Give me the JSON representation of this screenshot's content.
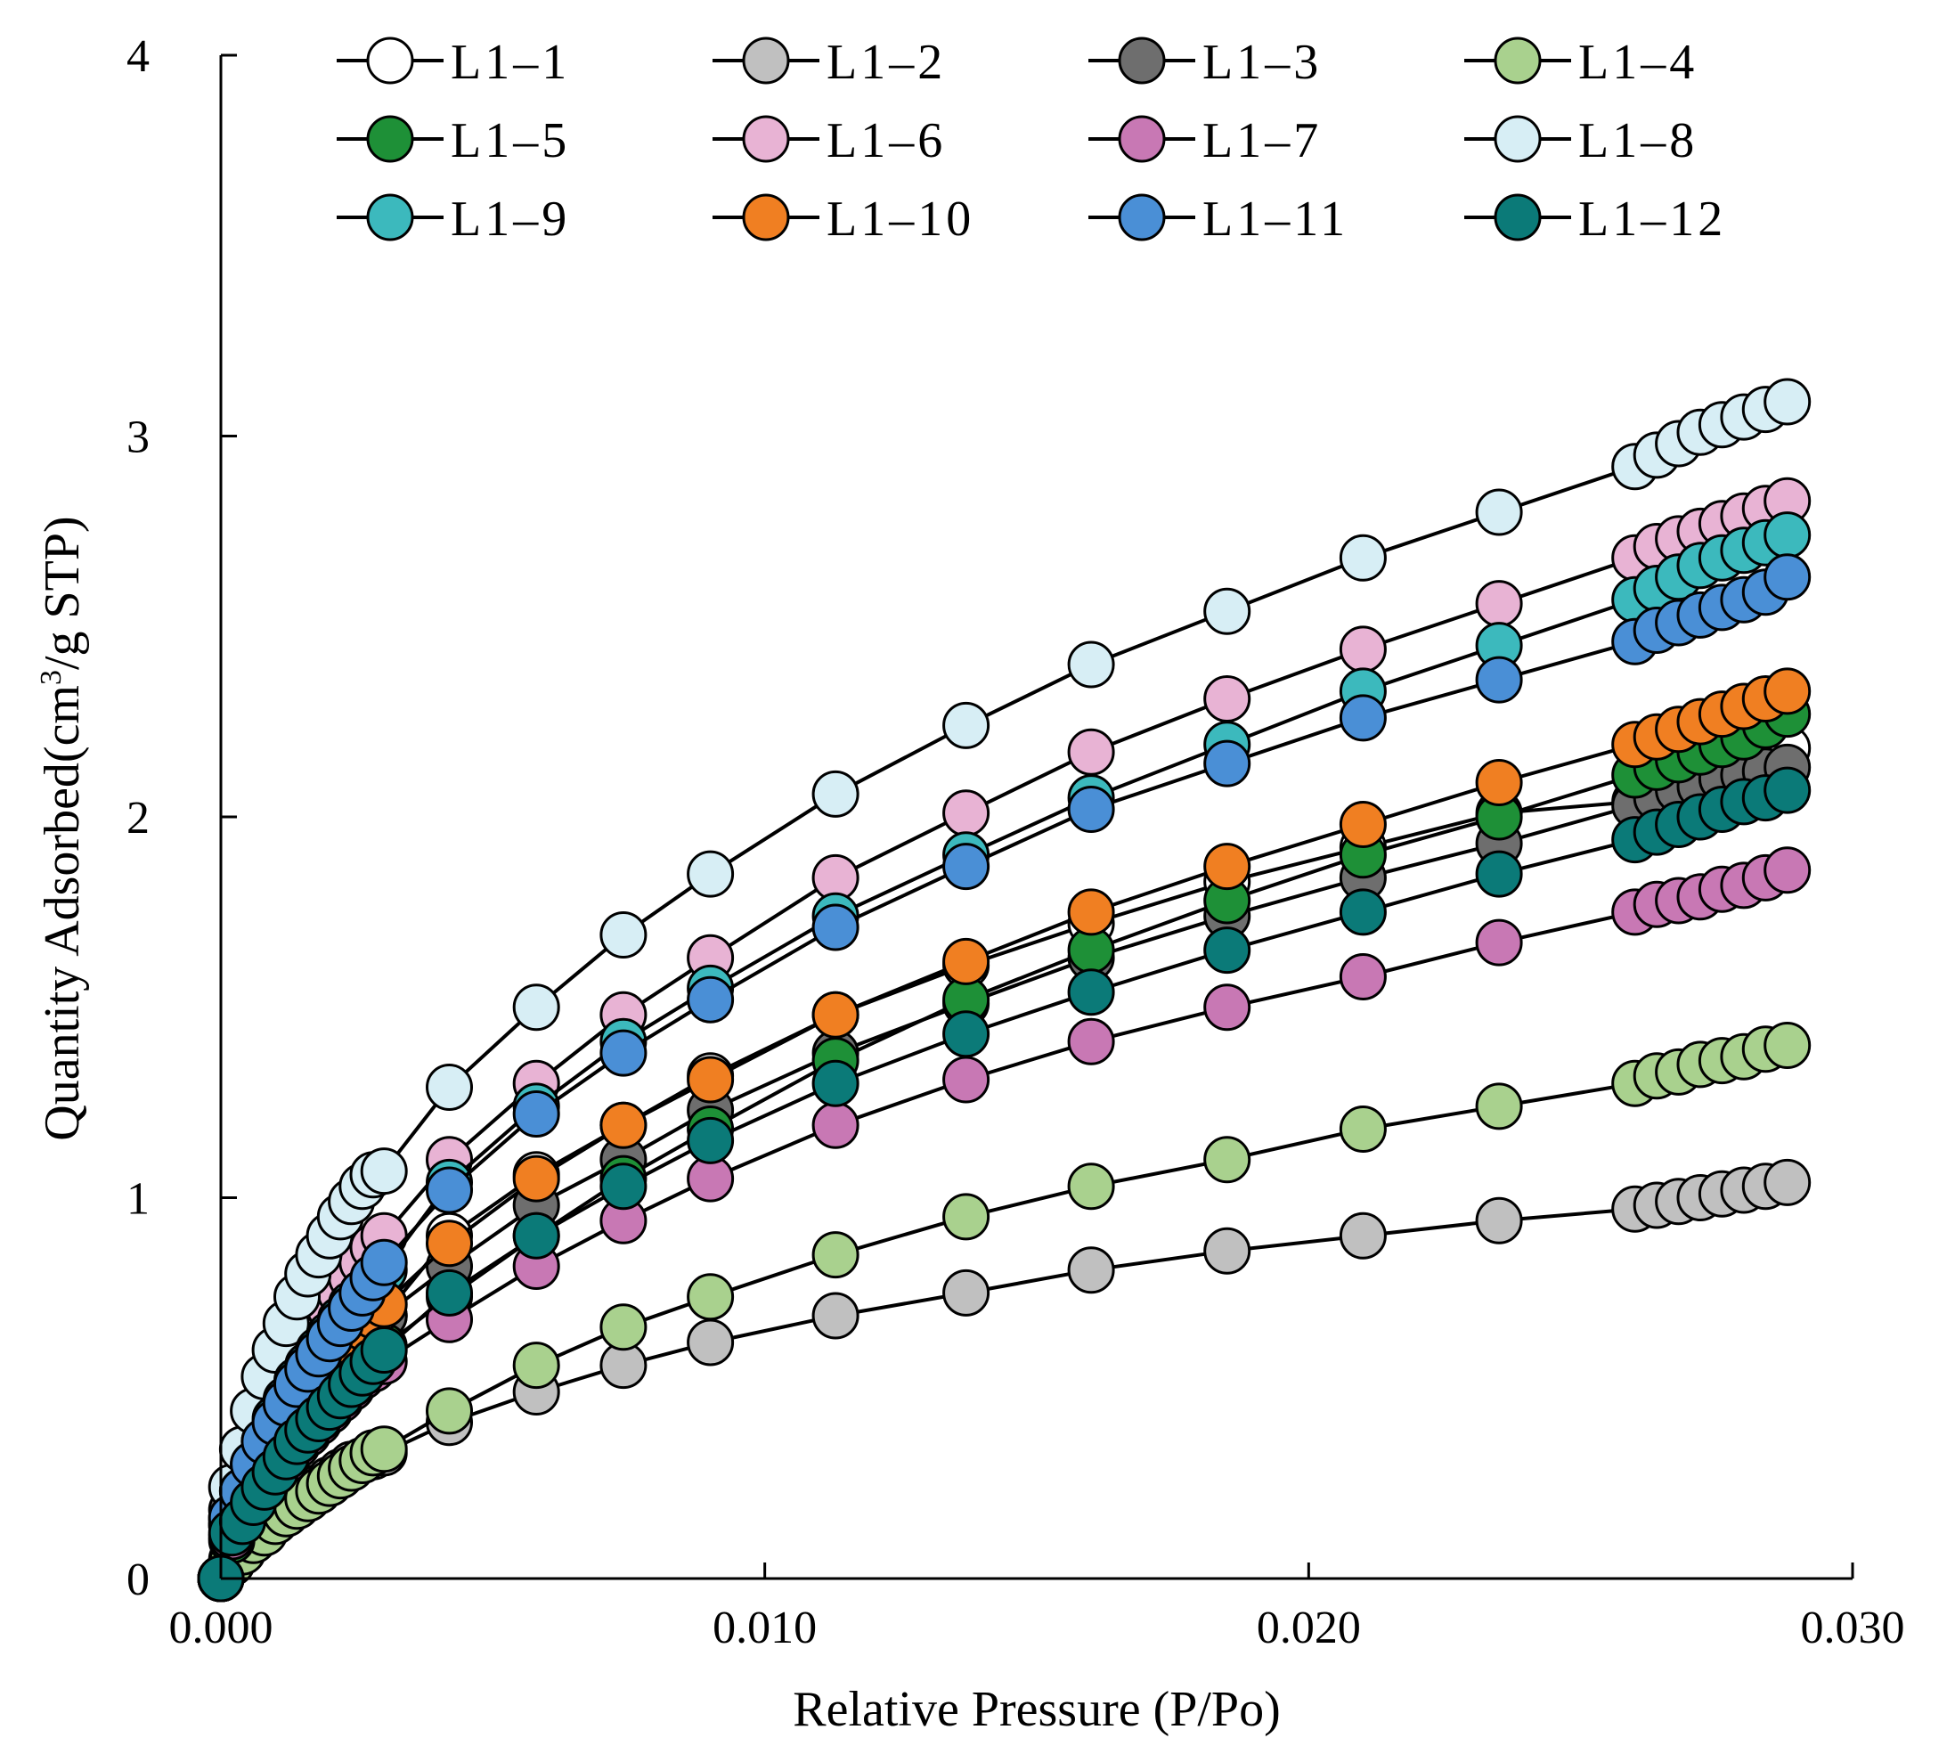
{
  "chart_data": {
    "type": "scatter",
    "title": "",
    "xlabel": "Relative Pressure (P/Po)",
    "ylabel": "Quantity Adsorbed(cm³/g STP)",
    "ylabel_parts": {
      "pre": "Quantity Adsorbed(cm",
      "sup": "3",
      "post": "/g STP)"
    },
    "xlim": [
      0,
      0.03
    ],
    "ylim": [
      0,
      4
    ],
    "x_ticks": [
      {
        "value": 0,
        "label": "0.000"
      },
      {
        "value": 0.01,
        "label": "0.010"
      },
      {
        "value": 0.02,
        "label": "0.020"
      },
      {
        "value": 0.03,
        "label": "0.030"
      }
    ],
    "y_ticks": [
      {
        "value": 0,
        "label": "0"
      },
      {
        "value": 1,
        "label": "1"
      },
      {
        "value": 2,
        "label": "2"
      },
      {
        "value": 3,
        "label": "3"
      },
      {
        "value": 4,
        "label": "4"
      }
    ],
    "legend_position": "top",
    "x": [
      0,
      0.0002,
      0.0004,
      0.0006,
      0.0008,
      0.001,
      0.0012,
      0.0014,
      0.0016,
      0.0018,
      0.002,
      0.0022,
      0.0024,
      0.0026,
      0.0028,
      0.003,
      0.0042,
      0.0058,
      0.0074,
      0.009,
      0.0113,
      0.0137,
      0.016,
      0.0185,
      0.021,
      0.0235,
      0.026,
      0.0264,
      0.0268,
      0.0272,
      0.0276,
      0.028,
      0.0284,
      0.0288
    ],
    "series": [
      {
        "name": "L1-1",
        "color": "#ffffff",
        "values": [
          0,
          0.14,
          0.2,
          0.25,
          0.3,
          0.34,
          0.38,
          0.42,
          0.46,
          0.5,
          0.53,
          0.56,
          0.6,
          0.63,
          0.66,
          0.69,
          0.9,
          1.06,
          1.19,
          1.32,
          1.48,
          1.61,
          1.72,
          1.83,
          1.92,
          2.01,
          2.04,
          2.06,
          2.08,
          2.1,
          2.12,
          2.14,
          2.16,
          2.18
        ]
      },
      {
        "name": "L1-2",
        "color": "#c0c0c0",
        "values": [
          0,
          0.05,
          0.08,
          0.11,
          0.14,
          0.16,
          0.18,
          0.2,
          0.22,
          0.24,
          0.26,
          0.28,
          0.3,
          0.31,
          0.32,
          0.33,
          0.41,
          0.49,
          0.56,
          0.62,
          0.69,
          0.75,
          0.81,
          0.86,
          0.9,
          0.94,
          0.97,
          0.98,
          0.99,
          1,
          1.01,
          1.02,
          1.03,
          1.04
        ]
      },
      {
        "name": "L1-3",
        "color": "#6e6e6e",
        "values": [
          0,
          0.18,
          0.24,
          0.3,
          0.35,
          0.39,
          0.43,
          0.47,
          0.5,
          0.53,
          0.56,
          0.59,
          0.62,
          0.64,
          0.67,
          0.69,
          0.82,
          0.98,
          1.1,
          1.23,
          1.38,
          1.51,
          1.63,
          1.74,
          1.84,
          1.93,
          2.03,
          2.05,
          2.07,
          2.08,
          2.1,
          2.11,
          2.12,
          2.13
        ]
      },
      {
        "name": "L1-4",
        "color": "#a9d18e",
        "values": [
          0,
          0.04,
          0.07,
          0.1,
          0.12,
          0.15,
          0.17,
          0.19,
          0.21,
          0.23,
          0.25,
          0.27,
          0.29,
          0.31,
          0.33,
          0.34,
          0.44,
          0.56,
          0.66,
          0.74,
          0.85,
          0.95,
          1.03,
          1.1,
          1.18,
          1.24,
          1.3,
          1.32,
          1.33,
          1.35,
          1.36,
          1.37,
          1.39,
          1.4
        ]
      },
      {
        "name": "L1-5",
        "color": "#1e9037",
        "values": [
          0,
          0.1,
          0.16,
          0.21,
          0.26,
          0.3,
          0.34,
          0.38,
          0.42,
          0.45,
          0.48,
          0.51,
          0.54,
          0.57,
          0.59,
          0.61,
          0.74,
          0.9,
          1.05,
          1.18,
          1.36,
          1.52,
          1.65,
          1.78,
          1.9,
          2,
          2.11,
          2.13,
          2.15,
          2.17,
          2.19,
          2.21,
          2.24,
          2.27
        ]
      },
      {
        "name": "L1-6",
        "color": "#e8b3d4",
        "values": [
          0,
          0.16,
          0.25,
          0.33,
          0.4,
          0.46,
          0.52,
          0.57,
          0.62,
          0.67,
          0.71,
          0.75,
          0.79,
          0.83,
          0.87,
          0.9,
          1.1,
          1.3,
          1.48,
          1.63,
          1.84,
          2.01,
          2.17,
          2.31,
          2.44,
          2.56,
          2.68,
          2.71,
          2.73,
          2.75,
          2.77,
          2.79,
          2.81,
          2.83
        ]
      },
      {
        "name": "L1-7",
        "color": "#c878b4",
        "values": [
          0,
          0.11,
          0.16,
          0.2,
          0.24,
          0.28,
          0.31,
          0.35,
          0.38,
          0.41,
          0.44,
          0.47,
          0.5,
          0.53,
          0.55,
          0.57,
          0.68,
          0.82,
          0.94,
          1.05,
          1.19,
          1.31,
          1.41,
          1.5,
          1.58,
          1.67,
          1.75,
          1.77,
          1.78,
          1.79,
          1.81,
          1.82,
          1.84,
          1.86
        ]
      },
      {
        "name": "L1-8",
        "color": "#d7eef5",
        "values": [
          0,
          0.24,
          0.34,
          0.44,
          0.53,
          0.6,
          0.67,
          0.74,
          0.8,
          0.85,
          0.9,
          0.95,
          0.99,
          1.03,
          1.06,
          1.07,
          1.29,
          1.5,
          1.69,
          1.85,
          2.06,
          2.24,
          2.4,
          2.54,
          2.68,
          2.8,
          2.92,
          2.95,
          2.98,
          3.01,
          3.03,
          3.05,
          3.07,
          3.09
        ]
      },
      {
        "name": "L1-9",
        "color": "#3cb9bd",
        "values": [
          0,
          0.15,
          0.23,
          0.3,
          0.36,
          0.42,
          0.47,
          0.52,
          0.56,
          0.6,
          0.64,
          0.68,
          0.72,
          0.75,
          0.78,
          0.81,
          1.04,
          1.24,
          1.41,
          1.55,
          1.74,
          1.9,
          2.05,
          2.19,
          2.33,
          2.45,
          2.57,
          2.6,
          2.63,
          2.66,
          2.68,
          2.7,
          2.72,
          2.74
        ]
      },
      {
        "name": "L1-10",
        "color": "#f07f22",
        "values": [
          0,
          0.14,
          0.2,
          0.26,
          0.31,
          0.36,
          0.4,
          0.44,
          0.48,
          0.52,
          0.56,
          0.59,
          0.62,
          0.66,
          0.69,
          0.72,
          0.88,
          1.05,
          1.19,
          1.31,
          1.48,
          1.62,
          1.75,
          1.87,
          1.98,
          2.09,
          2.19,
          2.21,
          2.23,
          2.25,
          2.27,
          2.29,
          2.31,
          2.33
        ]
      },
      {
        "name": "L1-11",
        "color": "#4a8fd6",
        "values": [
          0,
          0.16,
          0.23,
          0.3,
          0.36,
          0.41,
          0.46,
          0.51,
          0.55,
          0.59,
          0.63,
          0.67,
          0.71,
          0.75,
          0.79,
          0.83,
          1.02,
          1.22,
          1.38,
          1.52,
          1.71,
          1.87,
          2.02,
          2.14,
          2.26,
          2.36,
          2.46,
          2.49,
          2.51,
          2.53,
          2.55,
          2.57,
          2.59,
          2.63
        ]
      },
      {
        "name": "L1-12",
        "color": "#0b7a78",
        "values": [
          0,
          0.12,
          0.15,
          0.2,
          0.24,
          0.28,
          0.32,
          0.36,
          0.39,
          0.42,
          0.45,
          0.48,
          0.51,
          0.54,
          0.57,
          0.6,
          0.75,
          0.9,
          1.03,
          1.15,
          1.3,
          1.43,
          1.54,
          1.65,
          1.75,
          1.85,
          1.94,
          1.96,
          1.98,
          2,
          2.02,
          2.04,
          2.05,
          2.07
        ]
      }
    ]
  }
}
